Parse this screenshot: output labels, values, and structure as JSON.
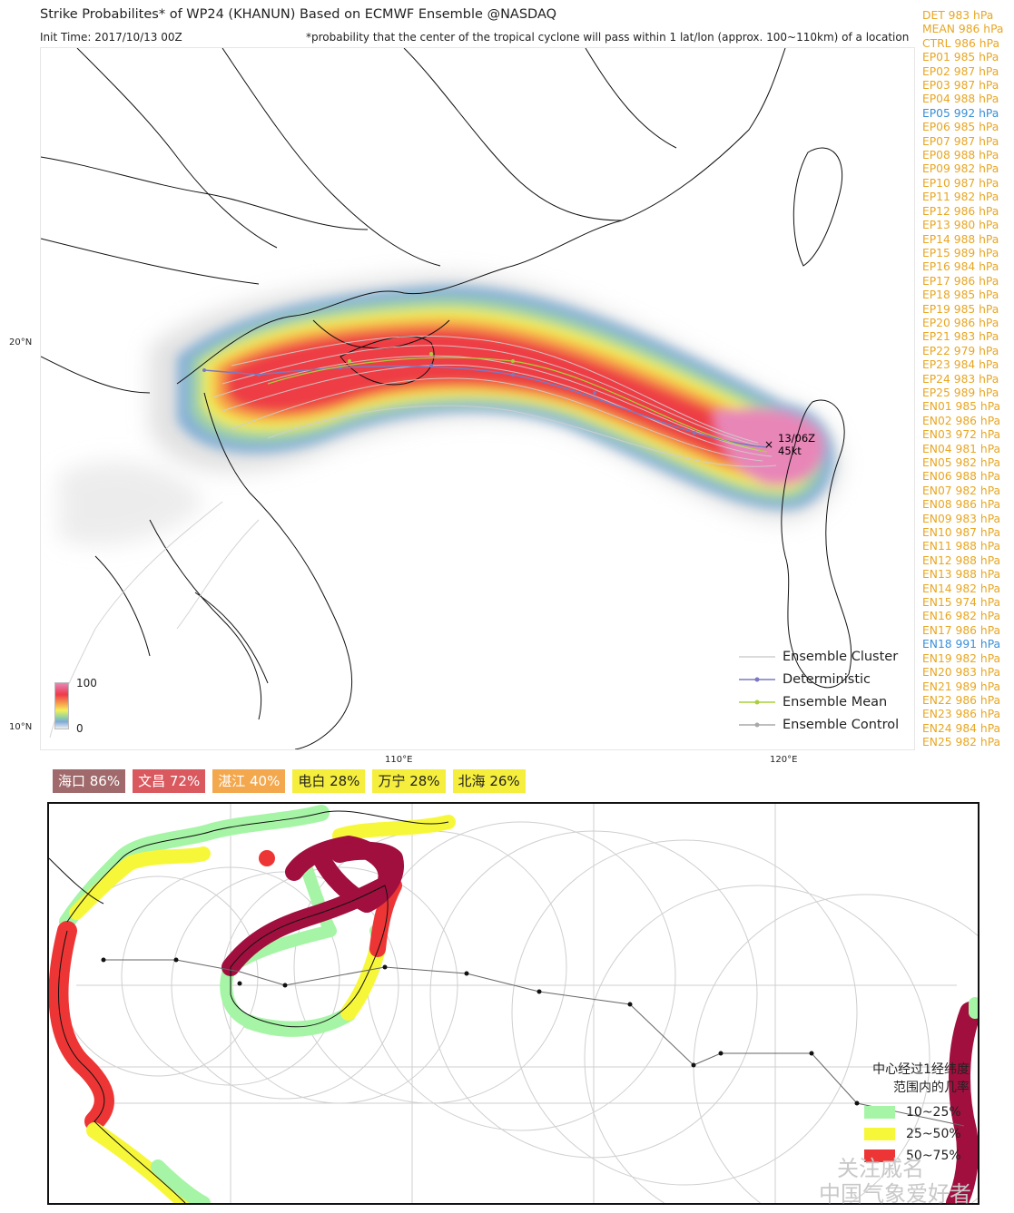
{
  "header": {
    "title": "Strike Probabilites* of WP24 (KHANUN) Based on ECMWF Ensemble  @NASDAQ",
    "init_time": "Init Time: 2017/10/13 00Z",
    "note": "*probability that the center of the tropical cyclone will pass within 1 lat/lon (approx. 100~110km) of a location"
  },
  "axes": {
    "lat_20": "20°N",
    "lat_10": "10°N",
    "lon_110": "110°E",
    "lon_120": "120°E"
  },
  "storm_marker": {
    "time": "13/06Z",
    "wind": "45kt"
  },
  "colorbar": {
    "max_label": "100",
    "min_label": "0"
  },
  "members": [
    {
      "label": "DET 983 hPa",
      "color": "#e8a623"
    },
    {
      "label": "MEAN 986 hPa",
      "color": "#e8a623"
    },
    {
      "label": "CTRL 986 hPa",
      "color": "#e8a623"
    },
    {
      "label": "EP01 985 hPa",
      "color": "#e8a623"
    },
    {
      "label": "EP02 987 hPa",
      "color": "#e8a623"
    },
    {
      "label": "EP03 987 hPa",
      "color": "#e8a623"
    },
    {
      "label": "EP04 988 hPa",
      "color": "#e8a623"
    },
    {
      "label": "EP05 992 hPa",
      "color": "#3a8fd6"
    },
    {
      "label": "EP06 985 hPa",
      "color": "#e8a623"
    },
    {
      "label": "EP07 987 hPa",
      "color": "#e8a623"
    },
    {
      "label": "EP08 988 hPa",
      "color": "#e8a623"
    },
    {
      "label": "EP09 982 hPa",
      "color": "#e8a623"
    },
    {
      "label": "EP10 987 hPa",
      "color": "#e8a623"
    },
    {
      "label": "EP11 982 hPa",
      "color": "#e8a623"
    },
    {
      "label": "EP12 986 hPa",
      "color": "#e8a623"
    },
    {
      "label": "EP13 980 hPa",
      "color": "#e8a623"
    },
    {
      "label": "EP14 988 hPa",
      "color": "#e8a623"
    },
    {
      "label": "EP15 989 hPa",
      "color": "#e8a623"
    },
    {
      "label": "EP16 984 hPa",
      "color": "#e8a623"
    },
    {
      "label": "EP17 986 hPa",
      "color": "#e8a623"
    },
    {
      "label": "EP18 985 hPa",
      "color": "#e8a623"
    },
    {
      "label": "EP19 985 hPa",
      "color": "#e8a623"
    },
    {
      "label": "EP20 986 hPa",
      "color": "#e8a623"
    },
    {
      "label": "EP21 983 hPa",
      "color": "#e8a623"
    },
    {
      "label": "EP22 979 hPa",
      "color": "#e8a623"
    },
    {
      "label": "EP23 984 hPa",
      "color": "#e8a623"
    },
    {
      "label": "EP24 983 hPa",
      "color": "#e8a623"
    },
    {
      "label": "EP25 989 hPa",
      "color": "#e8a623"
    },
    {
      "label": "EN01 985 hPa",
      "color": "#e8a623"
    },
    {
      "label": "EN02 986 hPa",
      "color": "#e8a623"
    },
    {
      "label": "EN03 972 hPa",
      "color": "#e8a623"
    },
    {
      "label": "EN04 981 hPa",
      "color": "#e8a623"
    },
    {
      "label": "EN05 982 hPa",
      "color": "#e8a623"
    },
    {
      "label": "EN06 988 hPa",
      "color": "#e8a623"
    },
    {
      "label": "EN07 982 hPa",
      "color": "#e8a623"
    },
    {
      "label": "EN08 986 hPa",
      "color": "#e8a623"
    },
    {
      "label": "EN09 983 hPa",
      "color": "#e8a623"
    },
    {
      "label": "EN10 987 hPa",
      "color": "#e8a623"
    },
    {
      "label": "EN11 988 hPa",
      "color": "#e8a623"
    },
    {
      "label": "EN12 988 hPa",
      "color": "#e8a623"
    },
    {
      "label": "EN13 988 hPa",
      "color": "#e8a623"
    },
    {
      "label": "EN14 982 hPa",
      "color": "#e8a623"
    },
    {
      "label": "EN15 974 hPa",
      "color": "#e8a623"
    },
    {
      "label": "EN16 982 hPa",
      "color": "#e8a623"
    },
    {
      "label": "EN17 986 hPa",
      "color": "#e8a623"
    },
    {
      "label": "EN18 991 hPa",
      "color": "#3a8fd6"
    },
    {
      "label": "EN19 982 hPa",
      "color": "#e8a623"
    },
    {
      "label": "EN20 983 hPa",
      "color": "#e8a623"
    },
    {
      "label": "EN21 989 hPa",
      "color": "#e8a623"
    },
    {
      "label": "EN22 986 hPa",
      "color": "#e8a623"
    },
    {
      "label": "EN23 986 hPa",
      "color": "#e8a623"
    },
    {
      "label": "EN24 984 hPa",
      "color": "#e8a623"
    },
    {
      "label": "EN25 982 hPa",
      "color": "#e8a623"
    }
  ],
  "legend_top": {
    "cluster": "Ensemble Cluster",
    "deterministic": "Deterministic",
    "mean": "Ensemble Mean",
    "control": "Ensemble Control"
  },
  "cities": [
    {
      "label": "海口 86%",
      "bg": "#a06a6c",
      "fg": "#ffffff"
    },
    {
      "label": "文昌 72%",
      "bg": "#d9595f",
      "fg": "#ffffff"
    },
    {
      "label": "湛江 40%",
      "bg": "#f3a84e",
      "fg": "#ffffff"
    },
    {
      "label": "电白 28%",
      "bg": "#f5ee3c",
      "fg": "#222222"
    },
    {
      "label": "万宁 28%",
      "bg": "#f5ee3c",
      "fg": "#222222"
    },
    {
      "label": "北海 26%",
      "bg": "#f5ee3c",
      "fg": "#222222"
    }
  ],
  "legend_bottom": {
    "title_line1": "中心经过1经纬度",
    "title_line2": "范围内的几率",
    "items": [
      {
        "label": "10~25%",
        "color": "#a6f5a6"
      },
      {
        "label": "25~50%",
        "color": "#f7f73a"
      },
      {
        "label": "50~75%",
        "color": "#ee3535"
      }
    ]
  },
  "watermark": {
    "line1": "关注戚名",
    "line2": "中国气象爱好者"
  }
}
